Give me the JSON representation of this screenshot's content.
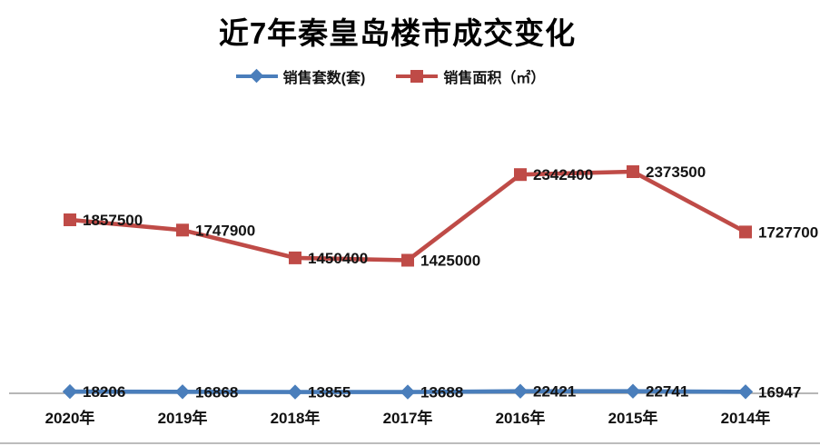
{
  "title": "近7年秦皇岛楼市成交变化",
  "chart_data": {
    "type": "line",
    "title": "近7年秦皇岛楼市成交变化",
    "categories": [
      "2020年",
      "2019年",
      "2018年",
      "2017年",
      "2016年",
      "2015年",
      "2014年"
    ],
    "series": [
      {
        "name": "销售套数(套)",
        "marker": "diamond",
        "color": "#4a7ebb",
        "values": [
          18206,
          16868,
          13855,
          13688,
          22421,
          22741,
          16947
        ]
      },
      {
        "name": "销售面积（㎡）",
        "marker": "square",
        "color": "#bf4b47",
        "values": [
          1857500,
          1747900,
          1450400,
          1425000,
          2342400,
          2373500,
          1727700
        ]
      }
    ],
    "ylim": [
      0,
      2500000
    ],
    "grid": false,
    "data_labels": true,
    "legend_position": "top",
    "axis_line_color": "#8c8c8c",
    "bottom_border_color": "#a6a6a6",
    "label_color": "#141414"
  }
}
